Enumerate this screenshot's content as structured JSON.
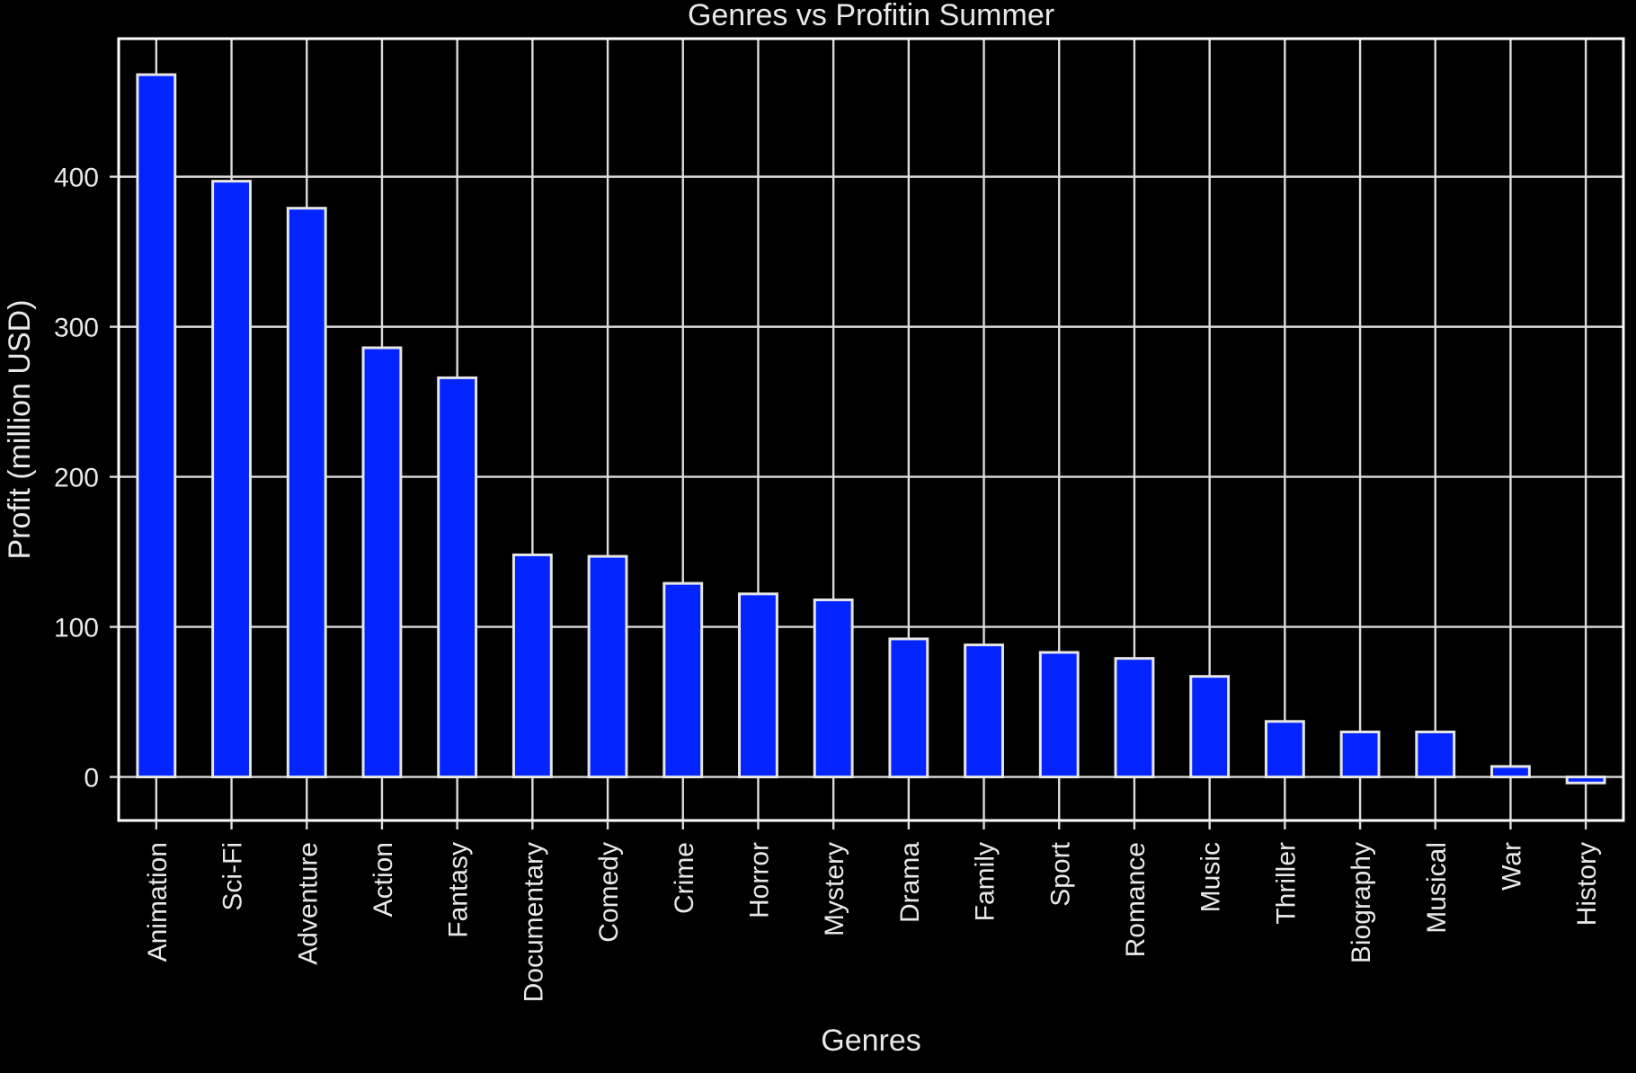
{
  "chart_data": {
    "type": "bar",
    "title": "Genres vs Profitin Summer",
    "xlabel": "Genres",
    "ylabel": "Profit (million USD)",
    "categories": [
      "Animation",
      "Sci-Fi",
      "Adventure",
      "Action",
      "Fantasy",
      "Documentary",
      "Comedy",
      "Crime",
      "Horror",
      "Mystery",
      "Drama",
      "Family",
      "Sport",
      "Romance",
      "Music",
      "Thriller",
      "Biography",
      "Musical",
      "War",
      "History"
    ],
    "values": [
      468,
      397,
      379,
      286,
      266,
      148,
      147,
      129,
      122,
      118,
      92,
      88,
      83,
      79,
      67,
      37,
      30,
      30,
      7,
      -4
    ],
    "ylim": [
      -29,
      492
    ],
    "yticks": [
      0,
      100,
      200,
      300,
      400
    ],
    "grid": true,
    "bar_color": "#0324ff",
    "bar_edge_color": "#e6e6e6",
    "background_color": "#000000",
    "text_color": "#e8e8e8",
    "grid_color": "#dcdcdc"
  }
}
